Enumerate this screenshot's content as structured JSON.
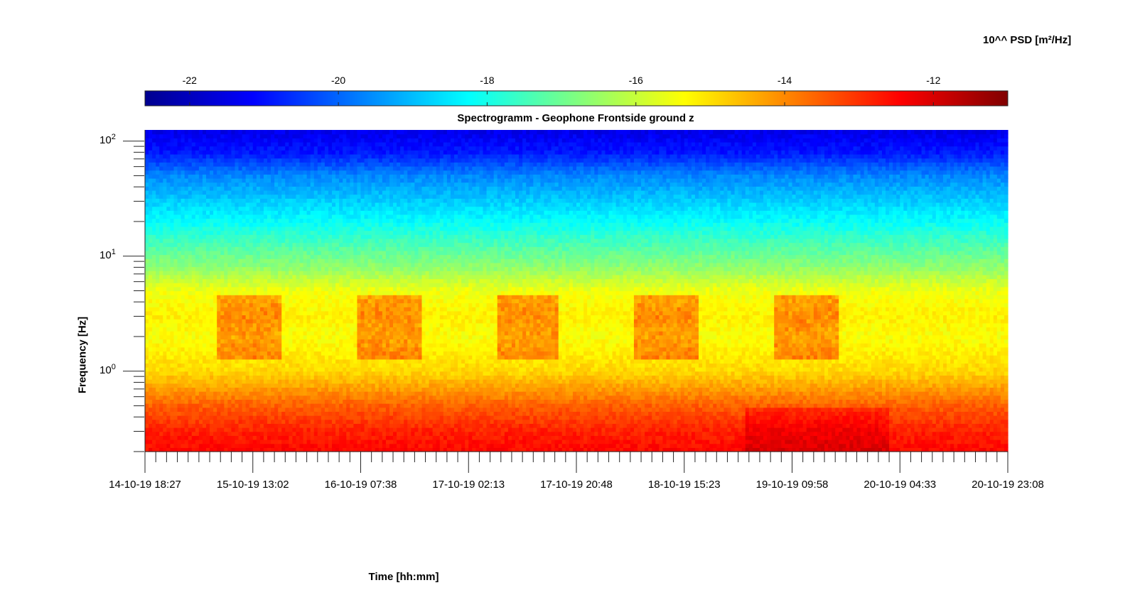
{
  "colorbar_title": "10^^ PSD [m²/Hz]",
  "chart_data": {
    "type": "heatmap",
    "title": "Spectrogramm - Geophone Frontside ground z",
    "xlabel": "Time [hh:mm]",
    "ylabel": "Frequency [Hz]",
    "x_tick_labels": [
      "14-10-19 18:27",
      "15-10-19 13:02",
      "16-10-19 07:38",
      "17-10-19 02:13",
      "17-10-19 20:48",
      "18-10-19 15:23",
      "19-10-19 09:58",
      "20-10-19 04:33",
      "20-10-19 23:08"
    ],
    "y_scale": "log",
    "y_tick_labels": [
      {
        "base": "10",
        "exp": "0",
        "value": 1
      },
      {
        "base": "10",
        "exp": "1",
        "value": 10
      },
      {
        "base": "10",
        "exp": "2",
        "value": 100
      }
    ],
    "ylim": [
      0.2,
      125
    ],
    "colorbar": {
      "position": "top",
      "colormap": "jet",
      "clim": [
        -22.6,
        -11
      ],
      "ticks": [
        -22,
        -20,
        -18,
        -16,
        -14,
        -12
      ],
      "tick_labels": [
        "-22",
        "-20",
        "-18",
        "-16",
        "-14",
        "-12"
      ]
    },
    "psd_log10_profile": {
      "freq_hz": [
        0.2,
        0.3,
        0.5,
        0.7,
        1.0,
        2.0,
        3.0,
        5.0,
        8.0,
        12.0,
        20.0,
        30.0,
        50.0,
        80.0,
        125.0
      ],
      "level": [
        -12.5,
        -12.8,
        -13.5,
        -14.2,
        -14.9,
        -15.4,
        -15.2,
        -15.5,
        -16.6,
        -17.3,
        -18.2,
        -18.8,
        -19.6,
        -20.9,
        -21.4
      ]
    },
    "activity_bands_hz": [
      1.3,
      4.5
    ],
    "activity_periods": [
      [
        "15-10-19 07:00",
        "15-10-19 18:00"
      ],
      [
        "16-10-19 07:00",
        "16-10-19 18:00"
      ],
      [
        "17-10-19 07:00",
        "17-10-19 18:00"
      ],
      [
        "18-10-19 07:00",
        "18-10-19 18:00"
      ],
      [
        "19-10-19 07:00",
        "19-10-19 18:00"
      ]
    ]
  }
}
